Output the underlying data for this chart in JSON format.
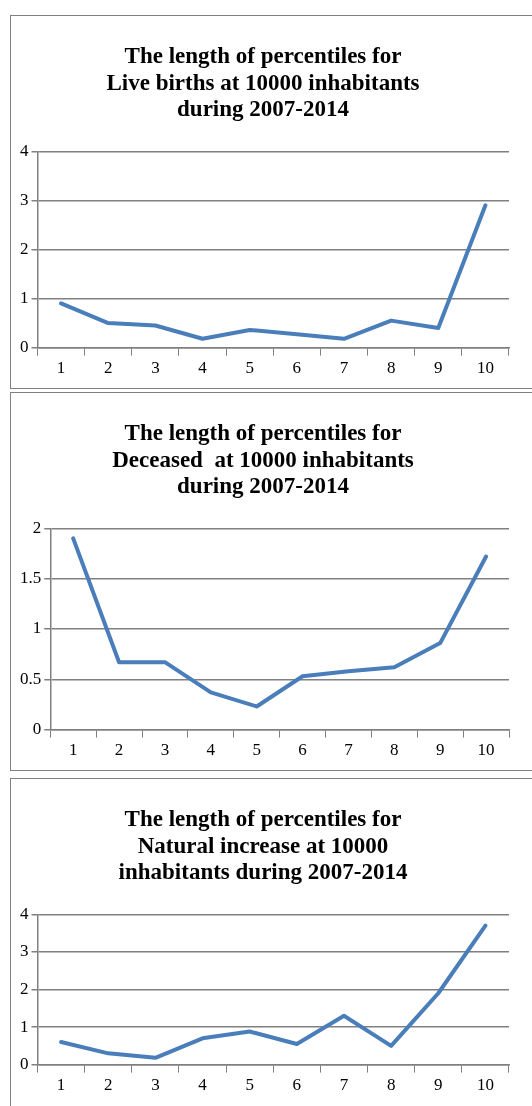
{
  "chart_data": [
    {
      "type": "line",
      "title": "The length of percentiles for\nLive births at 10000 inhabitants\nduring 2007-2014",
      "categories": [
        "1",
        "2",
        "3",
        "4",
        "5",
        "6",
        "7",
        "8",
        "9",
        "10"
      ],
      "series": [
        {
          "color": "#4a7ebb",
          "values": [
            0.9,
            0.5,
            0.45,
            0.18,
            0.36,
            0.27,
            0.18,
            0.55,
            0.4,
            2.9
          ]
        }
      ],
      "ylim": [
        0,
        4
      ],
      "yticks": [
        0,
        1,
        2,
        3,
        4
      ],
      "grid": "y",
      "legend": false,
      "marker": "none",
      "line_style": "solid"
    },
    {
      "type": "line",
      "title": "The length of percentiles for\nDeceased  at 10000 inhabitants\nduring 2007-2014",
      "categories": [
        "1",
        "2",
        "3",
        "4",
        "5",
        "6",
        "7",
        "8",
        "9",
        "10"
      ],
      "series": [
        {
          "color": "#4a7ebb",
          "values": [
            1.9,
            0.67,
            0.67,
            0.37,
            0.23,
            0.53,
            0.58,
            0.62,
            0.86,
            1.72
          ]
        }
      ],
      "ylim": [
        0,
        2
      ],
      "yticks": [
        0,
        0.5,
        1,
        1.5,
        2
      ],
      "grid": "y",
      "legend": false,
      "marker": "none",
      "line_style": "solid"
    },
    {
      "type": "line",
      "title": "The length of percentiles for\nNatural increase at 10000\ninhabitants during 2007-2014",
      "categories": [
        "1",
        "2",
        "3",
        "4",
        "5",
        "6",
        "7",
        "8",
        "9",
        "10"
      ],
      "series": [
        {
          "color": "#4a7ebb",
          "values": [
            0.6,
            0.3,
            0.18,
            0.7,
            0.88,
            0.55,
            1.3,
            0.5,
            1.9,
            3.7
          ]
        }
      ],
      "ylim": [
        0,
        4
      ],
      "yticks": [
        0,
        1,
        2,
        3,
        4
      ],
      "grid": "y",
      "legend": false,
      "marker": "none",
      "line_style": "solid"
    }
  ]
}
